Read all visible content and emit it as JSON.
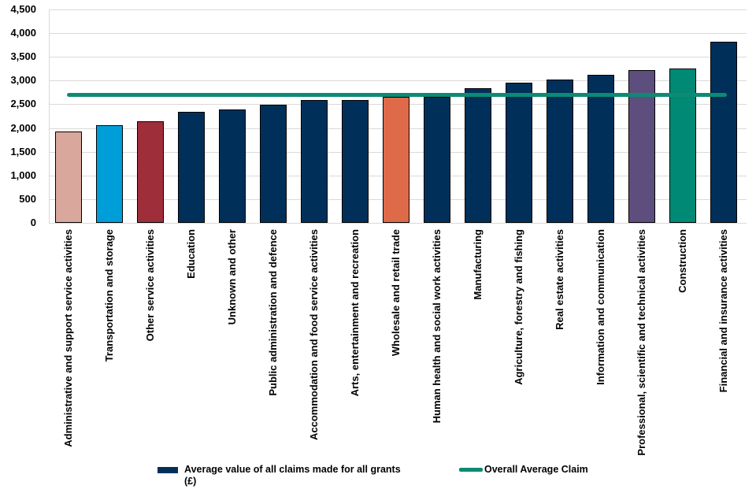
{
  "chart_data": {
    "type": "bar",
    "title": "",
    "categories": [
      "Administrative and support service activities",
      "Transportation and storage",
      "Other service activities",
      "Education",
      "Unknown and other",
      "Public administration and defence",
      "Accommodation and food service activities",
      "Arts, entertainment and recreation",
      "Wholesale and retail trade",
      "Human health and social work activities",
      "Manufacturing",
      "Agriculture, forestry and fishing",
      "Real estate activities",
      "Information and communication",
      "Professional, scientific and technical activities",
      "Construction",
      "Financial and insurance activities"
    ],
    "series": [
      {
        "name": "Average value of all claims made for all grants (£)",
        "type": "bar",
        "values": [
          1920,
          2060,
          2140,
          2340,
          2400,
          2490,
          2590,
          2590,
          2660,
          2660,
          2840,
          2950,
          3030,
          3130,
          3220,
          3260,
          3820
        ]
      },
      {
        "name": "Overall Average Claim",
        "type": "line",
        "value": 2700
      }
    ],
    "bar_colors": [
      "#d9a79b",
      "#009ed9",
      "#9e2f3a",
      "#00305a",
      "#00305a",
      "#00305a",
      "#00305a",
      "#00305a",
      "#de6a49",
      "#00305a",
      "#00305a",
      "#00305a",
      "#00305a",
      "#00305a",
      "#5e4e7e",
      "#008975",
      "#00305a"
    ],
    "ylim": [
      0,
      4500
    ],
    "ytick_step": 500,
    "ytick_labels": [
      "0",
      "500",
      "1,000",
      "1,500",
      "2,000",
      "2,500",
      "3,000",
      "3,500",
      "4,000",
      "4,500"
    ],
    "grid": true,
    "legend_position": "bottom"
  },
  "legend": {
    "bar_label_line1": "Average value of all claims made for all grants",
    "bar_label_line2": "(£)",
    "line_label": "Overall Average Claim"
  },
  "colors": {
    "navy": "#00305a",
    "pink": "#d9a79b",
    "cyan": "#009ed9",
    "dark_red": "#9e2f3a",
    "orange": "#de6a49",
    "purple": "#5e4e7e",
    "teal_bar": "#008975",
    "teal_line": "#0e8a74",
    "gridline": "#d9d9d9",
    "bar_border": "#000000"
  }
}
